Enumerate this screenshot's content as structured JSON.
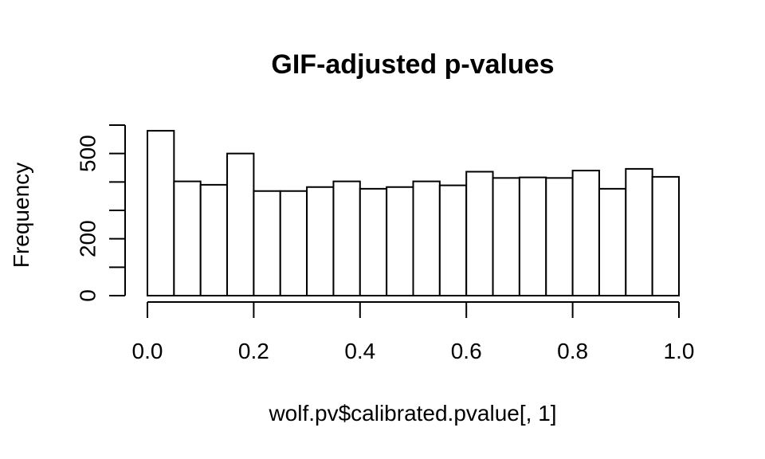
{
  "chart_data": {
    "type": "bar",
    "title": "GIF-adjusted p-values",
    "xlabel": "wolf.pv$calibrated.pvalue[, 1]",
    "ylabel": "Frequency",
    "bin_width": 0.05,
    "bin_starts": [
      0.0,
      0.05,
      0.1,
      0.15,
      0.2,
      0.25,
      0.3,
      0.35,
      0.4,
      0.45,
      0.5,
      0.55,
      0.6,
      0.65,
      0.7,
      0.75,
      0.8,
      0.85,
      0.9,
      0.95
    ],
    "values": [
      580,
      402,
      390,
      500,
      368,
      368,
      382,
      402,
      376,
      382,
      402,
      388,
      436,
      414,
      416,
      414,
      440,
      376,
      446,
      418
    ],
    "xlim": [
      0,
      1
    ],
    "ylim": [
      0,
      600
    ],
    "x_ticks": [
      0.0,
      0.2,
      0.4,
      0.6,
      0.8,
      1.0
    ],
    "x_tick_labels": [
      "0.0",
      "0.2",
      "0.4",
      "0.6",
      "0.8",
      "1.0"
    ],
    "y_ticks": [
      0,
      100,
      200,
      300,
      400,
      500,
      600
    ],
    "y_tick_labels": [
      "0",
      "",
      "200",
      "",
      "",
      "500",
      ""
    ],
    "grid": false,
    "colors": {
      "bar_fill": "#ffffff",
      "bar_stroke": "#000000"
    }
  }
}
